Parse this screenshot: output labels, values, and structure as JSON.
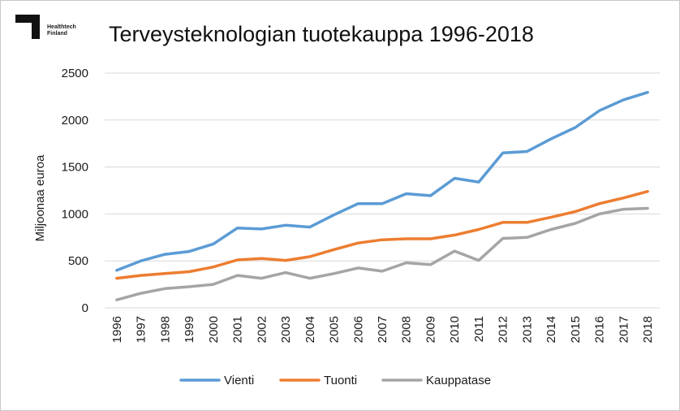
{
  "logo": {
    "line1": "Healthtech",
    "line2": "Finland"
  },
  "chart_data": {
    "type": "line",
    "title": "Terveysteknologian tuotekauppa 1996-2018",
    "ylabel": "Miljoonaa euroa",
    "xlabel": "",
    "ylim": [
      0,
      2500
    ],
    "yticks": [
      0,
      500,
      1000,
      1500,
      2000,
      2500
    ],
    "grid": true,
    "legend": "bottom",
    "x": [
      "1996",
      "1997",
      "1998",
      "1999",
      "2000",
      "2001",
      "2002",
      "2003",
      "2004",
      "2005",
      "2006",
      "2007",
      "2008",
      "2009",
      "2010",
      "2011",
      "2012",
      "2013",
      "2014",
      "2015",
      "2016",
      "2017",
      "2018"
    ],
    "series": [
      {
        "name": "Vienti",
        "color": "#5b9bd5",
        "values": [
          400,
          500,
          570,
          600,
          680,
          850,
          840,
          880,
          860,
          990,
          1110,
          1110,
          1215,
          1195,
          1380,
          1340,
          1650,
          1665,
          1800,
          1920,
          2100,
          2215,
          2295
        ]
      },
      {
        "name": "Tuonti",
        "color": "#ed7d31",
        "values": [
          315,
          345,
          365,
          385,
          435,
          510,
          525,
          505,
          545,
          620,
          690,
          725,
          735,
          735,
          775,
          835,
          910,
          910,
          965,
          1025,
          1110,
          1170,
          1240
        ]
      },
      {
        "name": "Kauppatase",
        "color": "#a5a5a5",
        "values": [
          85,
          155,
          205,
          225,
          250,
          345,
          315,
          375,
          315,
          365,
          425,
          390,
          480,
          460,
          605,
          505,
          740,
          750,
          835,
          900,
          1000,
          1050,
          1060
        ]
      }
    ]
  }
}
